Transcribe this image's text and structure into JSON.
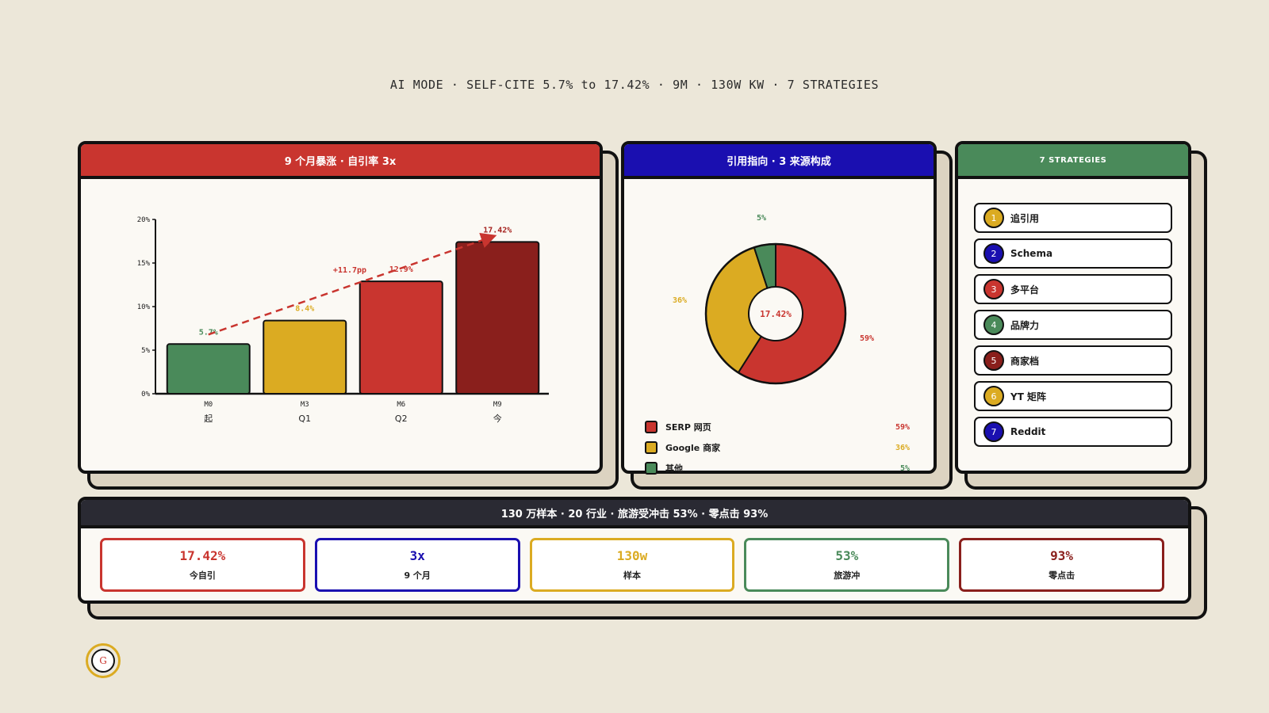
{
  "subtitle": "AI MODE · SELF-CITE 5.7% to 17.42% · 9M · 130W KW · 7 STRATEGIES",
  "colors": {
    "red": "#c9352f",
    "gold": "#dbab22",
    "green": "#4a8a5a",
    "darkred": "#8a1f1c",
    "blue": "#1a0fb0",
    "ink": "#111111"
  },
  "growth_panel": {
    "title": "9 个月暴涨 · 自引率 3x"
  },
  "sources_panel": {
    "title": "引用指向 · 3 来源构成"
  },
  "strategies_panel": {
    "title": "7 STRATEGIES",
    "items": [
      {
        "num": "1",
        "label": "追引用",
        "color": "#dbab22"
      },
      {
        "num": "2",
        "label": "Schema",
        "color": "#1a0fb0"
      },
      {
        "num": "3",
        "label": "多平台",
        "color": "#c9352f"
      },
      {
        "num": "4",
        "label": "品牌力",
        "color": "#4a8a5a"
      },
      {
        "num": "5",
        "label": "商家档",
        "color": "#8a1f1c"
      },
      {
        "num": "6",
        "label": "YT 矩阵",
        "color": "#dbab22"
      },
      {
        "num": "7",
        "label": "Reddit",
        "color": "#1a0fb0"
      }
    ]
  },
  "stats_panel": {
    "title": "130 万样本 · 20 行业 · 旅游受冲击 53% · 零点击 93%",
    "cards": [
      {
        "value": "17.42%",
        "label": "今自引",
        "color": "#c9352f"
      },
      {
        "value": "3x",
        "label": "9 个月",
        "color": "#1a0fb0"
      },
      {
        "value": "130w",
        "label": "样本",
        "color": "#dbab22"
      },
      {
        "value": "53%",
        "label": "旅游冲",
        "color": "#4a8a5a"
      },
      {
        "value": "93%",
        "label": "零点击",
        "color": "#8a1f1c"
      }
    ]
  },
  "logo": {
    "letter": "G"
  },
  "chart_data": [
    {
      "type": "bar",
      "categories": [
        "M0",
        "M3",
        "M6",
        "M9"
      ],
      "sublabels": [
        "起",
        "Q1",
        "Q2",
        "今"
      ],
      "values": [
        5.7,
        8.4,
        12.9,
        17.42
      ],
      "value_labels": [
        "5.7%",
        "8.4%",
        "12.9%",
        "17.42%"
      ],
      "bar_colors": [
        "#4a8a5a",
        "#dbab22",
        "#c9352f",
        "#8a1f1c"
      ],
      "ylim": [
        0,
        20
      ],
      "yticks": [
        0,
        5,
        10,
        15,
        20
      ],
      "ytick_labels": [
        "0%",
        "5%",
        "10%",
        "15%",
        "20%"
      ],
      "trend_annotation": "+11.7pp"
    },
    {
      "type": "pie",
      "style": "donut",
      "center_label": "17.42%",
      "slices": [
        {
          "name": "SERP 网页",
          "value": 59,
          "label": "59%",
          "color": "#c9352f"
        },
        {
          "name": "Google 商家",
          "value": 36,
          "label": "36%",
          "color": "#dbab22"
        },
        {
          "name": "其他",
          "value": 5,
          "label": "5%",
          "color": "#4a8a5a"
        }
      ]
    }
  ]
}
